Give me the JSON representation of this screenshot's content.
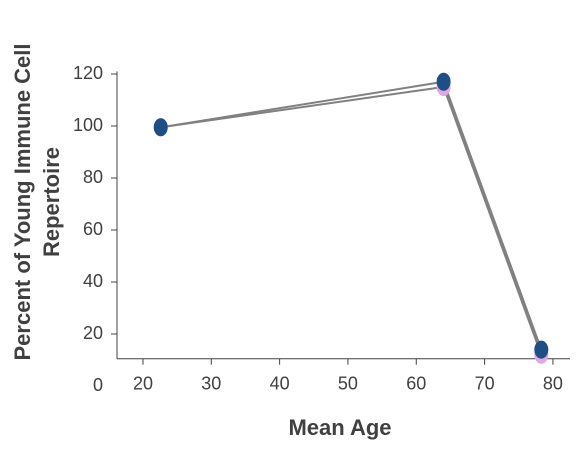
{
  "chart_data": {
    "type": "line",
    "xlabel": "Mean Age",
    "ylabel": [
      "Percent of Young Immune Cell",
      "Repertoire"
    ],
    "x": [
      22.6,
      64,
      78.3
    ],
    "series": [
      {
        "color": "#dda9e0",
        "values": [
          99.5,
          115,
          12
        ]
      },
      {
        "color": "#1f4e85",
        "values": [
          99.5,
          117,
          14
        ]
      }
    ],
    "line_color": "#808080",
    "xlim": [
      16.2,
      82.5
    ],
    "xticks": [
      20,
      30,
      40,
      50,
      60,
      70,
      80
    ],
    "ylim": [
      10.5,
      121
    ],
    "yticks": [
      0,
      20,
      40,
      60,
      80,
      100,
      120
    ]
  }
}
